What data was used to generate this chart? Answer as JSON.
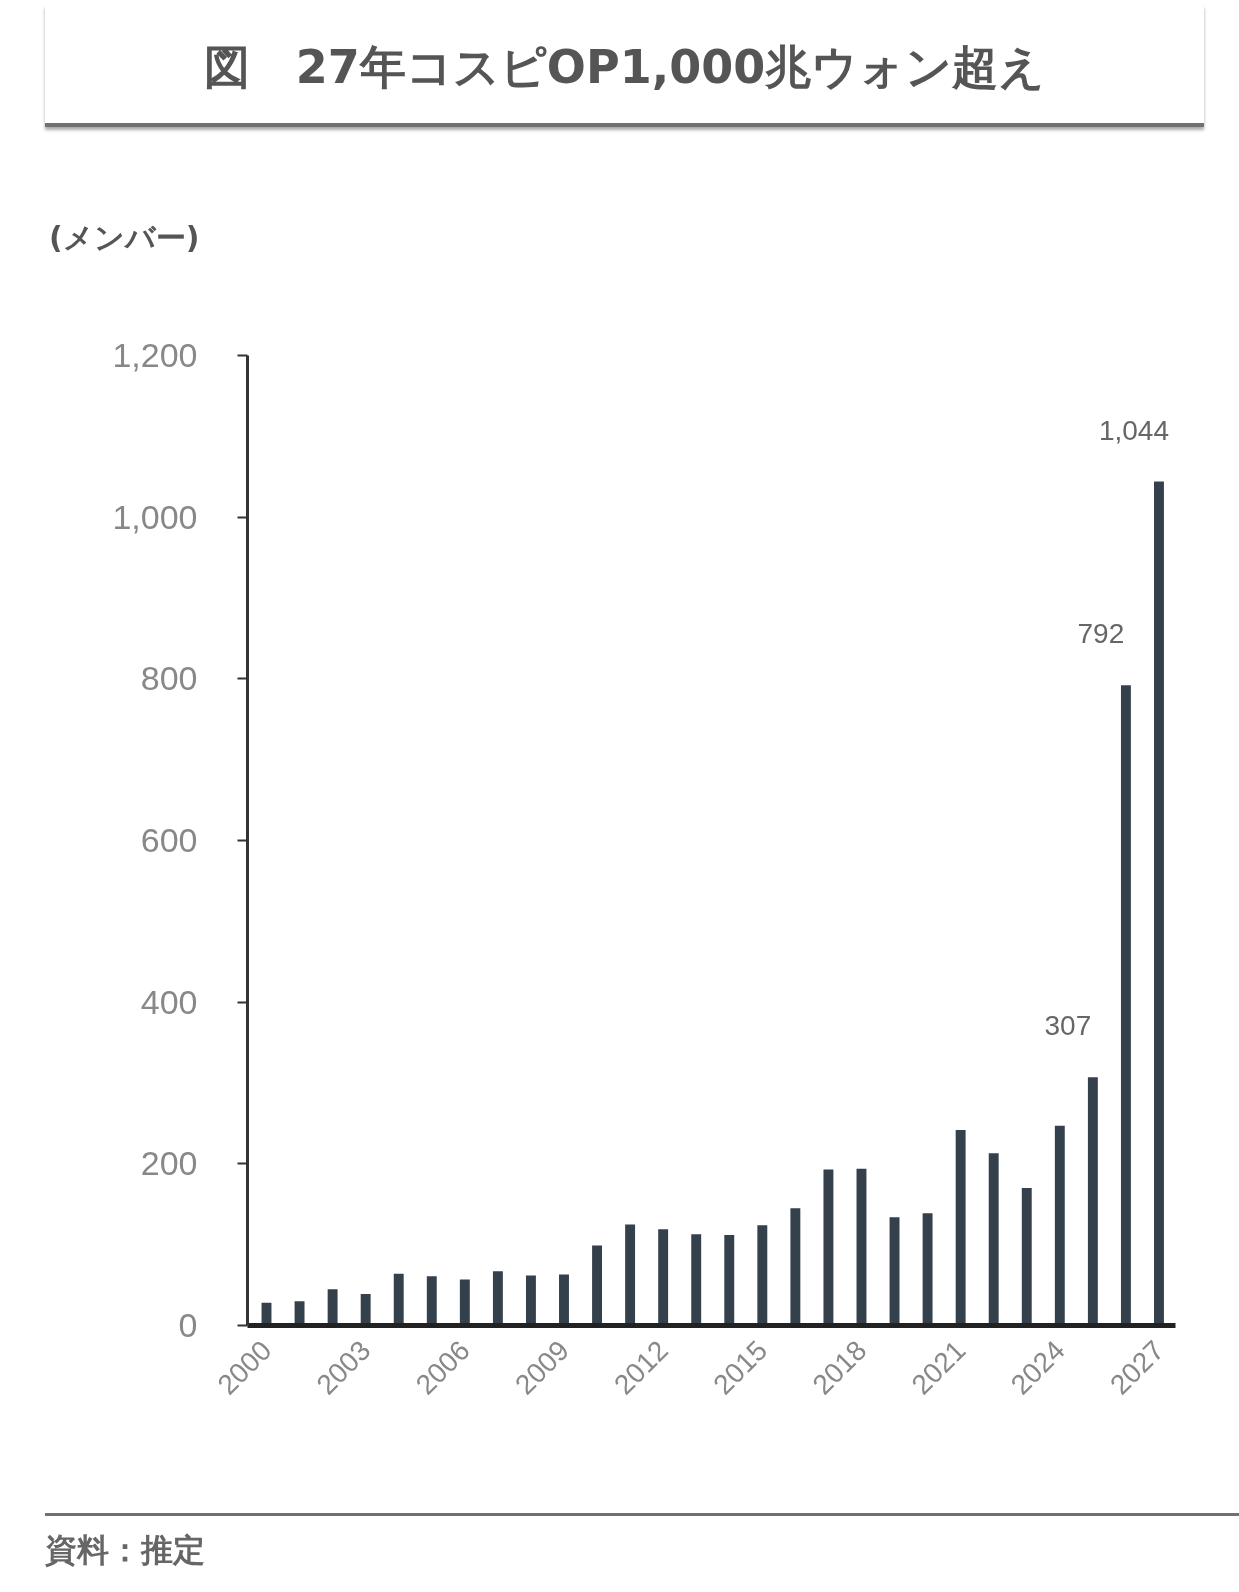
{
  "chart_data": {
    "type": "bar",
    "title": "図　27年コスピOP1,000兆ウォン超え",
    "ylabel": "(メンバー)",
    "categories": [
      "2000",
      null,
      null,
      "2003",
      null,
      null,
      "2006",
      null,
      null,
      "2009",
      null,
      null,
      "2012",
      null,
      null,
      "2015",
      null,
      null,
      "2018",
      null,
      null,
      "2021",
      null,
      null,
      "2024",
      null,
      null,
      "2027"
    ],
    "values": [
      28,
      30,
      45,
      39,
      64,
      61,
      57,
      67,
      62,
      63,
      99,
      125,
      119,
      113,
      112,
      124,
      145,
      193,
      194,
      134,
      139,
      242,
      213,
      170,
      247,
      307,
      792,
      1044
    ],
    "color": "#34404c",
    "ylim": [
      0,
      1200
    ],
    "yticks": [
      0,
      200,
      400,
      600,
      800,
      {
        "value": 1000,
        "label": "1,000"
      },
      {
        "value": 1200,
        "label": "1,200"
      }
    ],
    "value_labels": [
      null,
      null,
      null,
      null,
      null,
      null,
      null,
      null,
      null,
      null,
      null,
      null,
      null,
      null,
      null,
      null,
      null,
      null,
      null,
      null,
      null,
      null,
      null,
      null,
      null,
      "307",
      "792",
      "1,044"
    ],
    "annotations": [
      "資料：推定"
    ]
  }
}
